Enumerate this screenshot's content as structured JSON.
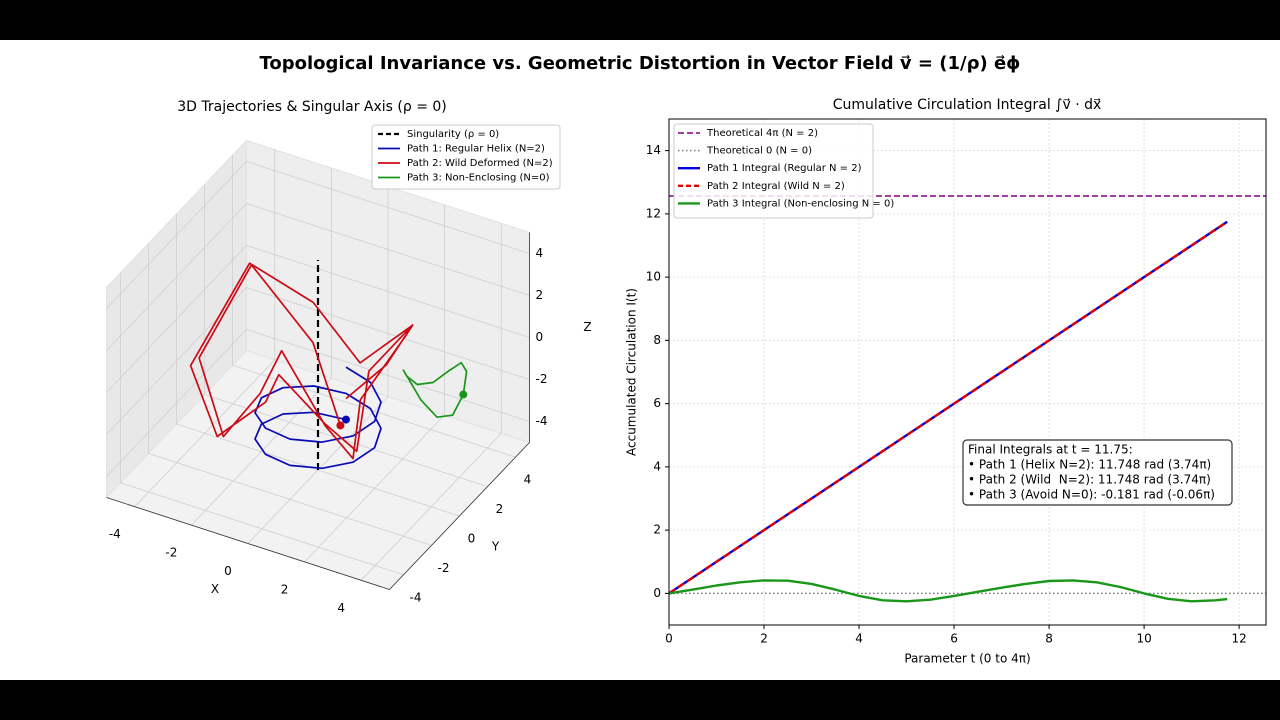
{
  "title": "Topological Invariance vs. Geometric Distortion in Vector Field v⃗ = (1/ρ) e⃗ϕ",
  "chart_data": [
    {
      "type": "line3d",
      "title": "3D Trajectories & Singular Axis (ρ = 0)",
      "xlabel": "X",
      "ylabel": "Y",
      "zlabel": "Z",
      "xlim": [
        -5,
        5
      ],
      "ylim": [
        -5,
        5
      ],
      "zlim": [
        -5,
        5
      ],
      "xticks": [
        -4,
        -2,
        0,
        2,
        4
      ],
      "yticks": [
        -4,
        -2,
        0,
        2,
        4
      ],
      "zticks": [
        -4,
        -2,
        0,
        2,
        4
      ],
      "grid": true,
      "legend": "upper right",
      "series": [
        {
          "name": "Singularity (ρ = 0)",
          "color": "#000000",
          "dash": true,
          "x": [
            0,
            0
          ],
          "y": [
            0,
            0
          ],
          "z": [
            -5,
            5
          ]
        },
        {
          "name": "Path 1: Regular Helix (N=2)",
          "color": "#0a0ab4",
          "start_marker": true,
          "x": [
            0,
            -1,
            -1.73,
            -2,
            -1.73,
            -1,
            0,
            1,
            1.73,
            2,
            1.73,
            1,
            0,
            -1,
            -1.73,
            -2,
            -1.73,
            -1,
            0,
            1,
            1.73,
            2,
            1.73,
            1,
            0
          ],
          "y": [
            2,
            1.73,
            1,
            0,
            -1,
            -1.73,
            -2,
            -1.73,
            -1,
            0,
            1,
            1.73,
            2,
            1.73,
            1,
            0,
            -1,
            -1.73,
            -2,
            -1.73,
            -1,
            0,
            1,
            1.73,
            2
          ],
          "z": [
            -4,
            -3.9,
            -3.79,
            -3.69,
            -3.58,
            -3.48,
            -3.38,
            -3.27,
            -3.17,
            -3.06,
            -2.96,
            -2.85,
            -2.75,
            -2.65,
            -2.54,
            -2.44,
            -2.33,
            -2.23,
            -2.13,
            -2.02,
            -1.92,
            -1.81,
            -1.71,
            -1.6,
            -1.5
          ]
        },
        {
          "name": "Path 2: Wild Deformed (N=2)",
          "color": "#cc0a14",
          "start_marker": true,
          "x": [
            0,
            -1.25,
            -3.29,
            -4.2,
            -2.6,
            -1.1,
            0,
            1.75,
            1.73,
            1.5,
            2.42,
            1.8,
            0,
            -1.2,
            -3.38,
            -4.5,
            -2.77,
            -1,
            0,
            1.7,
            1.91,
            1.8,
            2.6,
            1.3,
            0
          ],
          "y": [
            1.6,
            2.17,
            1.9,
            0,
            -1.5,
            -1.91,
            -2.6,
            -3.03,
            -1,
            0,
            1.4,
            3.12,
            3,
            2.08,
            1.95,
            0,
            -1.6,
            -1.73,
            -2.8,
            -2.94,
            -1.1,
            0,
            1.5,
            2.25,
            2
          ],
          "z": [
            -4,
            -1,
            2,
            -1.5,
            -3.5,
            -0.5,
            2.5,
            0,
            -3,
            -1,
            1.5,
            0.5,
            -2,
            1,
            2,
            -2,
            -3.5,
            -1,
            1.5,
            0,
            -2.5,
            0.5,
            2,
            -1,
            -3
          ]
        },
        {
          "name": "Path 3: Non-Enclosing (N=0)",
          "color": "#1a961a",
          "start_marker": true,
          "x": [
            3.6,
            3.47,
            3.1,
            2.6,
            2.1,
            1.73,
            1.6,
            1.73,
            2.1,
            2.6,
            3.1,
            3.47,
            3.6
          ],
          "y": [
            3.1,
            3.6,
            3.97,
            4.1,
            3.97,
            3.6,
            3.1,
            2.6,
            2.23,
            2.1,
            2.23,
            2.6,
            3.1
          ],
          "z": [
            -2,
            -1.31,
            -1.31,
            -2,
            -2.69,
            -2.69,
            -2,
            -1.31,
            -1.31,
            -2,
            -2.69,
            -2.69,
            -2
          ]
        }
      ]
    },
    {
      "type": "line",
      "title": "Cumulative Circulation Integral ∫v⃗ · dx⃗",
      "xlabel": "Parameter t (0 to 4π)",
      "ylabel": "Accumulated Circulation I(t)",
      "xlim": [
        0,
        12.566
      ],
      "ylim": [
        -1,
        15
      ],
      "xticks": [
        0,
        2,
        4,
        6,
        8,
        10,
        12
      ],
      "yticks": [
        0,
        2,
        4,
        6,
        8,
        10,
        12,
        14
      ],
      "grid": true,
      "legend": "upper left",
      "hlines": [
        {
          "name": "Theoretical 4π (N = 2)",
          "color": "#800080",
          "style": "dashed",
          "value": 12.566
        },
        {
          "name": "Theoretical 0 (N = 0)",
          "color": "#808080",
          "style": "dotted",
          "value": 0
        }
      ],
      "series": [
        {
          "name": "Path 1 Integral (Regular N = 2)",
          "color": "#0000e0",
          "x": [
            0,
            11.75
          ],
          "values": [
            0,
            11.748
          ]
        },
        {
          "name": "Path 2 Integral (Wild N = 2)",
          "color": "#e00000",
          "dash": true,
          "x": [
            0,
            11.75
          ],
          "values": [
            0,
            11.748
          ]
        },
        {
          "name": "Path 3 Integral (Non-enclosing N = 0)",
          "color": "#1a961a",
          "x": [
            0,
            0.5,
            1,
            1.5,
            2,
            2.5,
            3,
            3.5,
            4,
            4.5,
            5,
            5.5,
            6,
            6.5,
            7,
            7.5,
            8,
            8.5,
            9,
            9.5,
            10,
            10.5,
            11,
            11.5,
            11.75
          ],
          "values": [
            0,
            0.12,
            0.25,
            0.35,
            0.41,
            0.4,
            0.3,
            0.12,
            -0.08,
            -0.22,
            -0.25,
            -0.2,
            -0.08,
            0.05,
            0.18,
            0.3,
            0.39,
            0.41,
            0.35,
            0.2,
            0,
            -0.17,
            -0.25,
            -0.22,
            -0.181
          ]
        }
      ],
      "annotation": [
        "Final Integrals at t = 11.75:",
        "• Path 1 (Helix N=2): 11.748 rad (3.74π)",
        "• Path 2 (Wild  N=2): 11.748 rad (3.74π)",
        "• Path 3 (Avoid N=0): -0.181 rad (-0.06π)"
      ]
    }
  ]
}
